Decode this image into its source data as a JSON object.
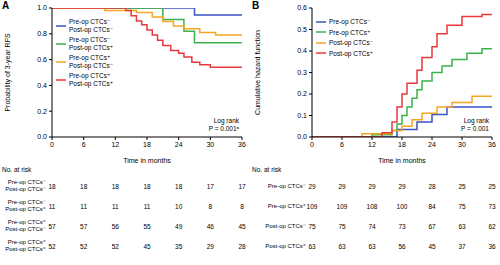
{
  "chart_data": [
    {
      "type": "line",
      "title": "A",
      "line_style": "step",
      "legend": "upper left",
      "x_label": "Time in months",
      "y_label": "Probability of 3-year RFS",
      "xlim": [
        0,
        36
      ],
      "xticks": [
        0,
        6,
        12,
        18,
        24,
        30,
        36
      ],
      "ylim": [
        0,
        1
      ],
      "yticks": [
        {
          "value": 0,
          "label": "0.0"
        },
        {
          "value": 0.2,
          "label": "0.2"
        },
        {
          "value": 0.4,
          "label": "0.4"
        },
        {
          "value": 0.6,
          "label": "0.6"
        },
        {
          "value": 0.8,
          "label": "0.8"
        },
        {
          "value": 1,
          "label": "1.0"
        }
      ],
      "annotations": [
        "Log rank",
        "P = 0.001ᵃ"
      ],
      "series": [
        {
          "name": "Pre-op CTCs⁻\nPost-op CTCs⁻",
          "color": "#3a53c5",
          "x": [
            0,
            27,
            36
          ],
          "values": [
            1.0,
            0.945,
            0.945
          ]
        },
        {
          "name": "Pre-op CTCs⁻\nPost-op CTCs⁺",
          "color": "#3cb34a",
          "x": [
            0,
            21,
            25,
            27,
            36
          ],
          "values": [
            1.0,
            0.91,
            0.82,
            0.73,
            0.73
          ]
        },
        {
          "name": "Pre-op CTCs⁺\nPost-op CTCs⁻",
          "color": "#f5a623",
          "x": [
            0,
            10,
            16,
            19,
            21,
            23,
            25,
            28,
            31,
            36
          ],
          "values": [
            1.0,
            0.98,
            0.965,
            0.93,
            0.895,
            0.86,
            0.84,
            0.81,
            0.79,
            0.79
          ]
        },
        {
          "name": "Pre-op CTCs⁺\nPost-op CTCs⁺",
          "color": "#e8383d",
          "x": [
            0,
            14,
            15,
            16,
            17,
            18,
            19,
            20,
            21,
            22.5,
            24,
            25,
            26.5,
            28,
            30,
            36
          ],
          "values": [
            1.0,
            0.98,
            0.94,
            0.9,
            0.87,
            0.83,
            0.79,
            0.75,
            0.71,
            0.67,
            0.65,
            0.62,
            0.58,
            0.56,
            0.54,
            0.54
          ]
        }
      ],
      "risk_table": {
        "title": "No. at risk",
        "rows": [
          {
            "label": "Pre-op CTCs⁻\nPost-op CTCs⁻",
            "values": [
              18,
              18,
              18,
              18,
              18,
              17,
              17
            ]
          },
          {
            "label": "Pre-op CTCs⁻\nPost-op CTCs⁺",
            "values": [
              11,
              11,
              11,
              11,
              10,
              8,
              8
            ]
          },
          {
            "label": "Pre-op CTCs⁺\nPost-op CTCs⁻",
            "values": [
              57,
              57,
              56,
              55,
              49,
              46,
              45
            ]
          },
          {
            "label": "Pre-op CTCs⁺\nPost-op CTCs⁺",
            "values": [
              52,
              52,
              52,
              45,
              35,
              29,
              28
            ]
          }
        ]
      }
    },
    {
      "type": "line",
      "title": "B",
      "line_style": "step",
      "legend": "upper left",
      "x_label": "Time in months",
      "y_label": "Cumulative hazard function",
      "xlim": [
        0,
        36
      ],
      "xticks": [
        0,
        6,
        12,
        18,
        24,
        30,
        36
      ],
      "ylim": [
        0,
        0.6
      ],
      "yticks": [
        {
          "value": 0,
          "label": "0.0"
        },
        {
          "value": 0.1,
          "label": "0.1"
        },
        {
          "value": 0.2,
          "label": "0.2"
        },
        {
          "value": 0.3,
          "label": "0.3"
        },
        {
          "value": 0.4,
          "label": "0.4"
        },
        {
          "value": 0.5,
          "label": "0.5"
        },
        {
          "value": 0.6,
          "label": "0.6"
        }
      ],
      "annotations": [
        "Log rank",
        "P = 0.001"
      ],
      "series": [
        {
          "name": "Pre-op CTCs⁻",
          "color": "#3a53c5",
          "x": [
            0,
            17,
            21,
            24,
            27,
            36
          ],
          "values": [
            0,
            0.035,
            0.07,
            0.105,
            0.14,
            0.14
          ]
        },
        {
          "name": "Pre-op CTCs⁺",
          "color": "#3cb34a",
          "x": [
            0,
            12,
            16,
            17,
            18,
            19,
            20,
            21,
            22,
            24,
            26,
            28,
            31,
            34,
            36
          ],
          "values": [
            0,
            0.01,
            0.03,
            0.06,
            0.1,
            0.14,
            0.18,
            0.22,
            0.26,
            0.3,
            0.33,
            0.36,
            0.39,
            0.41,
            0.41
          ]
        },
        {
          "name": "Post-op CTCs⁻",
          "color": "#f5a623",
          "x": [
            0,
            10,
            16,
            18,
            20,
            22,
            25,
            28,
            32,
            36
          ],
          "values": [
            0,
            0.015,
            0.03,
            0.05,
            0.08,
            0.11,
            0.14,
            0.16,
            0.19,
            0.19
          ]
        },
        {
          "name": "Post-op CTCs⁺",
          "color": "#e8383d",
          "x": [
            0,
            14,
            16,
            17,
            18,
            19,
            21,
            22,
            24,
            25,
            27,
            30,
            34,
            36
          ],
          "values": [
            0,
            0.02,
            0.07,
            0.14,
            0.2,
            0.25,
            0.31,
            0.37,
            0.42,
            0.48,
            0.52,
            0.56,
            0.57,
            0.57
          ]
        }
      ],
      "risk_table": {
        "title": "No. at risk",
        "rows": [
          {
            "label": "Pre-op CTCs⁻",
            "values": [
              29,
              29,
              29,
              29,
              28,
              25,
              25
            ]
          },
          {
            "label": "Pre-op CTCs⁺",
            "values": [
              109,
              109,
              108,
              100,
              84,
              75,
              73
            ]
          },
          {
            "label": "Post-op CTCs⁻",
            "values": [
              75,
              75,
              74,
              73,
              67,
              63,
              62
            ]
          },
          {
            "label": "Post-op CTCs⁺",
            "values": [
              63,
              63,
              63,
              56,
              45,
              37,
              36
            ]
          }
        ]
      }
    }
  ]
}
